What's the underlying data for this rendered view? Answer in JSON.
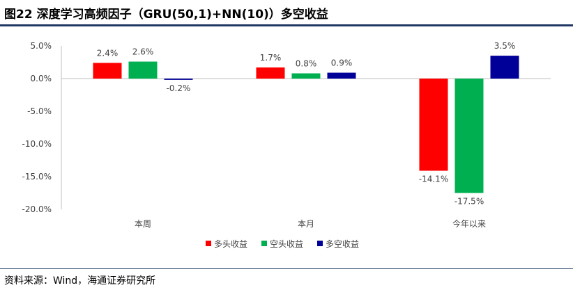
{
  "figure": {
    "title": "图22 深度学习高频因子（GRU(50,1)+NN(10)）多空收益",
    "source_label": "资料来源：",
    "source_text": "Wind，海通证券研究所"
  },
  "chart_data": {
    "type": "bar",
    "categories": [
      "本周",
      "本月",
      "今年以来"
    ],
    "series": [
      {
        "name": "多头收益",
        "color": "#ff0000",
        "values": [
          2.4,
          1.7,
          -14.1
        ],
        "labels": [
          "2.4%",
          "1.7%",
          "-14.1%"
        ]
      },
      {
        "name": "空头收益",
        "color": "#00b050",
        "values": [
          2.6,
          0.8,
          -17.5
        ],
        "labels": [
          "2.6%",
          "0.8%",
          "-17.5%"
        ]
      },
      {
        "name": "多空收益",
        "color": "#000099",
        "values": [
          -0.2,
          0.9,
          3.5
        ],
        "labels": [
          "-0.2%",
          "0.9%",
          "3.5%"
        ]
      }
    ],
    "ylim": [
      -20,
      5
    ],
    "yticks": [
      5,
      0,
      -5,
      -10,
      -15,
      -20
    ],
    "ytick_labels": [
      "5.0%",
      "0.0%",
      "-5.0%",
      "-10.0%",
      "-15.0%",
      "-20.0%"
    ],
    "grid": false,
    "legend_position": "bottom"
  }
}
